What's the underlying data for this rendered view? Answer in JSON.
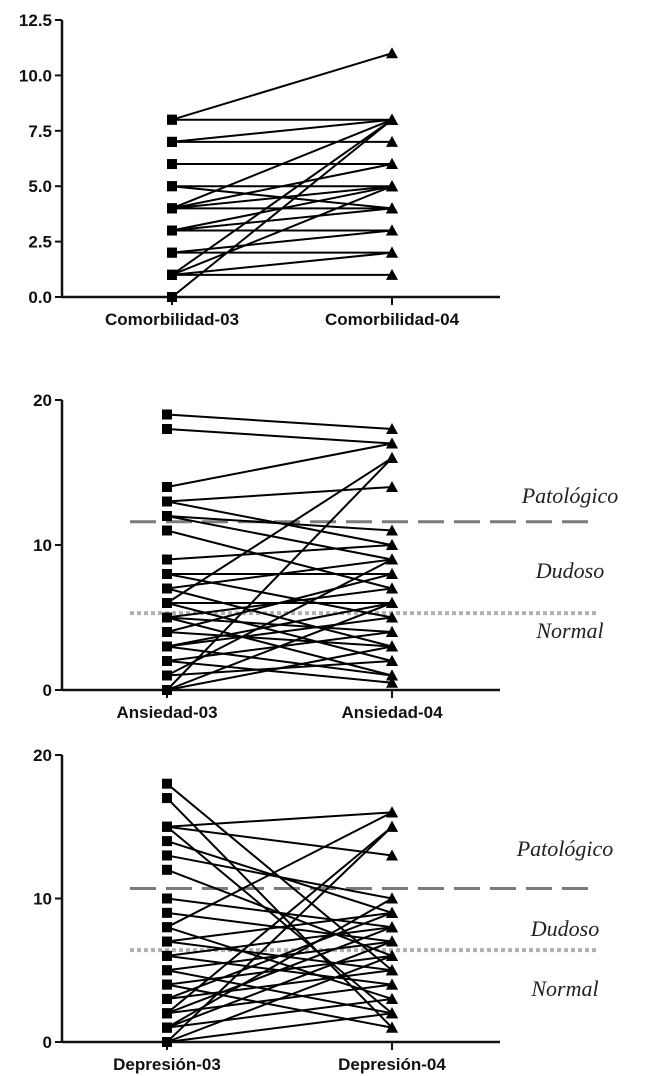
{
  "chart_data": [
    {
      "type": "line",
      "categories": [
        "Comorbilidad-03",
        "Comorbilidad-04"
      ],
      "ylim": [
        0,
        12.5
      ],
      "yticks": [
        "0.0",
        "2.5",
        "5.0",
        "7.5",
        "10.0",
        "12.5"
      ],
      "markers": [
        "square",
        "triangle"
      ],
      "series": [
        {
          "values": [
            8,
            11
          ]
        },
        {
          "values": [
            8,
            8
          ]
        },
        {
          "values": [
            7,
            8
          ]
        },
        {
          "values": [
            7,
            7
          ]
        },
        {
          "values": [
            6,
            6
          ]
        },
        {
          "values": [
            5,
            5
          ]
        },
        {
          "values": [
            5,
            4
          ]
        },
        {
          "values": [
            4,
            8
          ]
        },
        {
          "values": [
            4,
            6
          ]
        },
        {
          "values": [
            4,
            5
          ]
        },
        {
          "values": [
            4,
            4
          ]
        },
        {
          "values": [
            3,
            5
          ]
        },
        {
          "values": [
            3,
            3
          ]
        },
        {
          "values": [
            3,
            4
          ]
        },
        {
          "values": [
            2,
            2
          ]
        },
        {
          "values": [
            2,
            3
          ]
        },
        {
          "values": [
            1,
            8
          ]
        },
        {
          "values": [
            1,
            5
          ]
        },
        {
          "values": [
            1,
            2
          ]
        },
        {
          "values": [
            1,
            1
          ]
        },
        {
          "values": [
            0,
            8
          ]
        }
      ]
    },
    {
      "type": "line",
      "categories": [
        "Ansiedad-03",
        "Ansiedad-04"
      ],
      "ylim": [
        0,
        20
      ],
      "yticks": [
        "0",
        "10",
        "20"
      ],
      "markers": [
        "square",
        "triangle"
      ],
      "thresholds": [
        {
          "value": 11.6,
          "style": "dashed"
        },
        {
          "value": 5.3,
          "style": "dotted"
        }
      ],
      "zones": [
        "Patológico",
        "Dudoso",
        "Normal"
      ],
      "series": [
        {
          "values": [
            19,
            18
          ]
        },
        {
          "values": [
            18,
            17
          ]
        },
        {
          "values": [
            14,
            17
          ]
        },
        {
          "values": [
            13,
            14
          ]
        },
        {
          "values": [
            13,
            10
          ]
        },
        {
          "values": [
            12,
            9
          ]
        },
        {
          "values": [
            12,
            11
          ]
        },
        {
          "values": [
            11,
            7
          ]
        },
        {
          "values": [
            9,
            10
          ]
        },
        {
          "values": [
            8,
            8
          ]
        },
        {
          "values": [
            8,
            5
          ]
        },
        {
          "values": [
            7,
            9
          ]
        },
        {
          "values": [
            7,
            3
          ]
        },
        {
          "values": [
            6,
            16
          ]
        },
        {
          "values": [
            6,
            2
          ]
        },
        {
          "values": [
            6,
            6
          ]
        },
        {
          "values": [
            5,
            4
          ]
        },
        {
          "values": [
            5,
            7
          ]
        },
        {
          "values": [
            5,
            1
          ]
        },
        {
          "values": [
            4,
            8
          ]
        },
        {
          "values": [
            4,
            3
          ]
        },
        {
          "values": [
            3,
            6
          ]
        },
        {
          "values": [
            3,
            1
          ]
        },
        {
          "values": [
            3,
            5
          ]
        },
        {
          "values": [
            2,
            4
          ]
        },
        {
          "values": [
            2,
            0.5
          ]
        },
        {
          "values": [
            1,
            2
          ]
        },
        {
          "values": [
            1,
            9
          ]
        },
        {
          "values": [
            0,
            16
          ]
        },
        {
          "values": [
            0,
            3
          ]
        },
        {
          "values": [
            0,
            6
          ]
        }
      ]
    },
    {
      "type": "line",
      "categories": [
        "Depresión-03",
        "Depresión-04"
      ],
      "ylim": [
        0,
        20
      ],
      "yticks": [
        "0",
        "10",
        "20"
      ],
      "markers": [
        "square",
        "triangle"
      ],
      "thresholds": [
        {
          "value": 10.7,
          "style": "dashed"
        },
        {
          "value": 6.4,
          "style": "dotted"
        }
      ],
      "zones": [
        "Patológico",
        "Dudoso",
        "Normal"
      ],
      "series": [
        {
          "values": [
            18,
            5
          ]
        },
        {
          "values": [
            17,
            1
          ]
        },
        {
          "values": [
            15,
            16
          ]
        },
        {
          "values": [
            15,
            2
          ]
        },
        {
          "values": [
            15,
            13
          ]
        },
        {
          "values": [
            14,
            9
          ]
        },
        {
          "values": [
            13,
            10
          ]
        },
        {
          "values": [
            12,
            6
          ]
        },
        {
          "values": [
            10,
            8
          ]
        },
        {
          "values": [
            9,
            7
          ]
        },
        {
          "values": [
            8,
            16
          ]
        },
        {
          "values": [
            8,
            3
          ]
        },
        {
          "values": [
            7,
            9
          ]
        },
        {
          "values": [
            7,
            5
          ]
        },
        {
          "values": [
            6,
            4
          ]
        },
        {
          "values": [
            6,
            8
          ]
        },
        {
          "values": [
            5,
            2
          ]
        },
        {
          "values": [
            5,
            7
          ]
        },
        {
          "values": [
            4,
            6
          ]
        },
        {
          "values": [
            4,
            1
          ]
        },
        {
          "values": [
            3,
            5
          ]
        },
        {
          "values": [
            3,
            9
          ]
        },
        {
          "values": [
            2,
            15
          ]
        },
        {
          "values": [
            2,
            4
          ]
        },
        {
          "values": [
            1,
            3
          ]
        },
        {
          "values": [
            1,
            7
          ]
        },
        {
          "values": [
            0,
            15
          ]
        },
        {
          "values": [
            0,
            6
          ]
        },
        {
          "values": [
            0,
            2
          ]
        },
        {
          "values": [
            1,
            10
          ]
        },
        {
          "values": [
            2,
            8
          ]
        }
      ]
    }
  ]
}
